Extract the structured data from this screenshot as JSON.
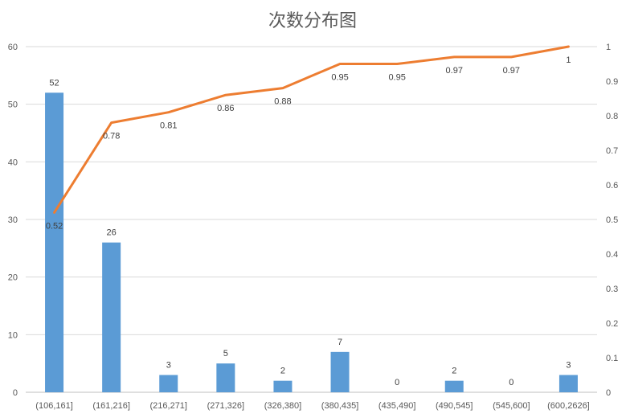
{
  "chart_data": {
    "type": "bar",
    "title": "次数分布图",
    "categories": [
      "(106,161]",
      "(161,216]",
      "(216,271]",
      "(271,326]",
      "(326,380]",
      "(380,435]",
      "(435,490]",
      "(490,545]",
      "(545,600]",
      "(600,2626]"
    ],
    "series": [
      {
        "type": "bar",
        "axis": "left",
        "values": [
          52,
          26,
          3,
          5,
          2,
          7,
          0,
          2,
          0,
          3
        ],
        "color": "#5b9bd5"
      },
      {
        "type": "line",
        "axis": "right",
        "values": [
          0.52,
          0.78,
          0.81,
          0.86,
          0.88,
          0.95,
          0.95,
          0.97,
          0.97,
          1
        ],
        "color": "#ed7d31"
      }
    ],
    "y_left": {
      "min": 0,
      "max": 60,
      "ticks": [
        0,
        10,
        20,
        30,
        40,
        50,
        60
      ]
    },
    "y_right": {
      "min": 0,
      "max": 1,
      "ticks": [
        "0",
        "0.1",
        "0.2",
        "0.3",
        "0.4",
        "0.5",
        "0.6",
        "0.7",
        "0.8",
        "0.9",
        "1"
      ]
    },
    "grid": true,
    "legend": "none"
  }
}
